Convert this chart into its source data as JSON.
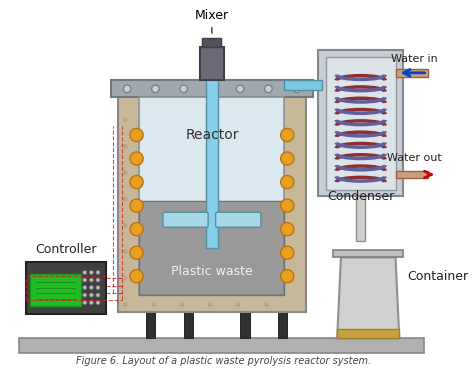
{
  "title": "Figure 6: Layout of a pyrolysis reactor system",
  "caption": "Figure 6. Layout of a plastic waste pyrolysis reactor system.",
  "labels": {
    "mixer": "Mixer",
    "reactor": "Reactor",
    "plastic_waste": "Plastic waste",
    "condenser": "Condenser",
    "water_out": "Water out",
    "water_in": "Water in",
    "controller": "Controller",
    "container": "Container"
  },
  "colors": {
    "background": "#ffffff",
    "insulation": "#c8b89a",
    "reactor_wall": "#a0a0a0",
    "reactor_inner": "#dce8f0",
    "plastic_fill": "#8a8a8a",
    "plastic_fill2": "#b0b0b0",
    "mixer_shaft": "#87ceeb",
    "mixer_motor": "#6a6a7a",
    "heater_dot": "#e8a020",
    "condenser_box": "#b0b8c0",
    "coil_dark": "#8b3030",
    "coil_mid": "#6060a0",
    "arrow_red": "#cc0000",
    "arrow_blue": "#0044cc",
    "controller_box": "#404040",
    "controller_screen": "#22bb22",
    "container_body": "#d0d0d0",
    "floor": "#b0b0b0",
    "pipe_blue": "#7ec8e3",
    "leg": "#303030",
    "dashed_line": "#cc2222",
    "frame_outer": "#888888",
    "top_lid": "#a0a8b0"
  },
  "figsize": [
    4.74,
    3.78
  ],
  "dpi": 100
}
